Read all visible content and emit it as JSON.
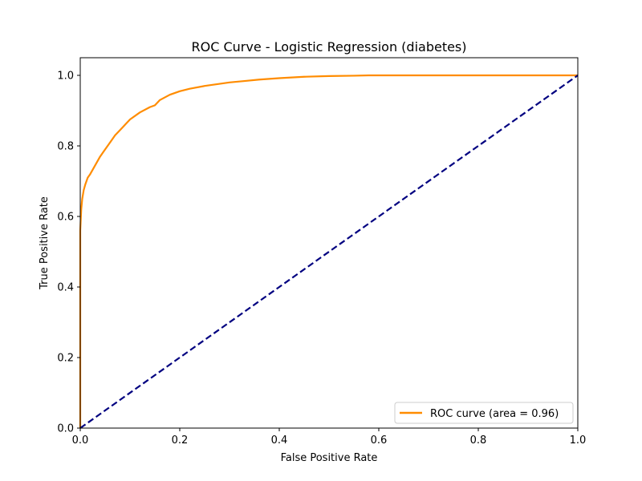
{
  "chart_data": {
    "type": "line",
    "title": "ROC Curve - Logistic Regression (diabetes)",
    "xlabel": "False Positive Rate",
    "ylabel": "True Positive Rate",
    "xlim": [
      0.0,
      1.0
    ],
    "ylim": [
      0.0,
      1.05
    ],
    "xticks": [
      0.0,
      0.2,
      0.4,
      0.6,
      0.8,
      1.0
    ],
    "xtick_labels": [
      "0.0",
      "0.2",
      "0.4",
      "0.6",
      "0.8",
      "1.0"
    ],
    "yticks": [
      0.0,
      0.2,
      0.4,
      0.6,
      0.8,
      1.0
    ],
    "ytick_labels": [
      "0.0",
      "0.2",
      "0.4",
      "0.6",
      "0.8",
      "1.0"
    ],
    "grid": false,
    "legend_position": "bottom-right",
    "series": [
      {
        "name": "ROC curve (area = 0.96)",
        "color": "#ff8c00",
        "line_style": "solid",
        "x": [
          0.0,
          0.0,
          0.002,
          0.004,
          0.007,
          0.01,
          0.015,
          0.02,
          0.03,
          0.04,
          0.05,
          0.06,
          0.07,
          0.08,
          0.09,
          0.1,
          0.12,
          0.14,
          0.15,
          0.16,
          0.18,
          0.2,
          0.22,
          0.25,
          0.28,
          0.3,
          0.33,
          0.36,
          0.4,
          0.45,
          0.5,
          0.55,
          0.58,
          0.6,
          0.7,
          0.8,
          0.9,
          1.0
        ],
        "y": [
          0.0,
          0.56,
          0.62,
          0.65,
          0.675,
          0.69,
          0.71,
          0.72,
          0.745,
          0.77,
          0.79,
          0.81,
          0.83,
          0.845,
          0.86,
          0.875,
          0.895,
          0.91,
          0.915,
          0.93,
          0.945,
          0.955,
          0.962,
          0.97,
          0.976,
          0.98,
          0.984,
          0.988,
          0.992,
          0.996,
          0.998,
          0.999,
          1.0,
          1.0,
          1.0,
          1.0,
          1.0,
          1.0
        ]
      },
      {
        "name": "",
        "color": "#000080",
        "line_style": "dashed",
        "x": [
          0.0,
          1.0
        ],
        "y": [
          0.0,
          1.0
        ]
      }
    ]
  }
}
